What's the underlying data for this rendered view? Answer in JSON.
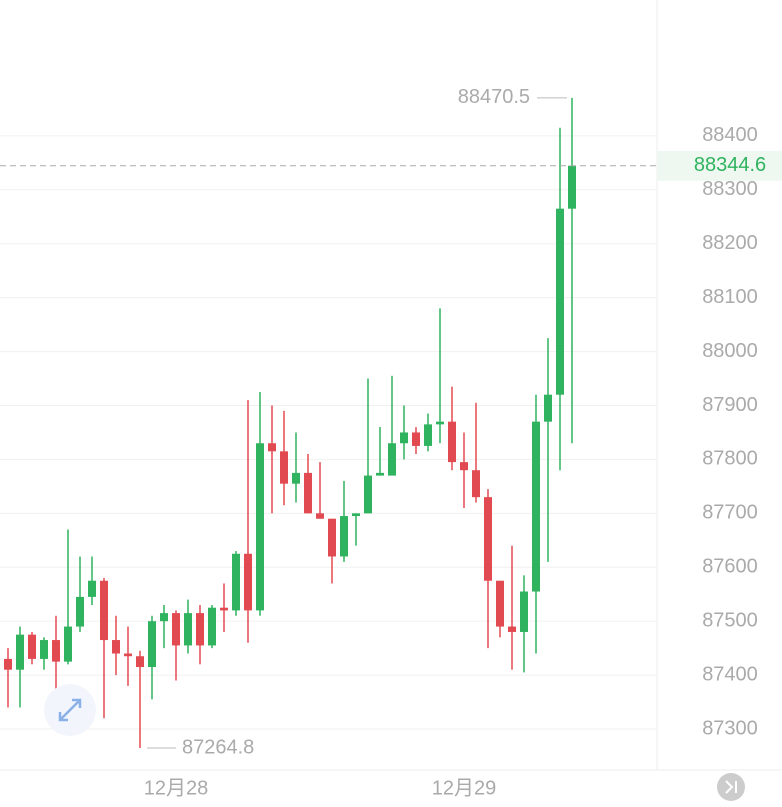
{
  "chart_data": {
    "type": "candlestick",
    "categories": [
      null,
      null,
      null,
      null,
      null,
      null,
      null,
      null,
      null,
      null,
      null,
      null,
      null,
      null,
      "12月28",
      null,
      null,
      null,
      null,
      null,
      null,
      null,
      null,
      null,
      null,
      null,
      null,
      null,
      null,
      null,
      null,
      null,
      null,
      null,
      null,
      null,
      null,
      null,
      "12月29",
      null,
      null,
      null,
      null,
      null,
      null,
      null,
      null,
      null
    ],
    "open": [
      87430,
      87410,
      87475,
      87430,
      87465,
      87425,
      87490,
      87545,
      87575,
      87465,
      87440,
      87435,
      87415,
      87500,
      87515,
      87455,
      87515,
      87455,
      87525,
      87520,
      87625,
      87520,
      87830,
      87815,
      87755,
      87775,
      87700,
      87690,
      87620,
      87695,
      87700,
      87770,
      87770,
      87830,
      87850,
      87825,
      87865,
      87870,
      87795,
      87780,
      87730,
      87575,
      87490,
      87480,
      87555,
      87870,
      87920,
      88265
    ],
    "close": [
      87410,
      87475,
      87430,
      87465,
      87425,
      87490,
      87545,
      87575,
      87465,
      87440,
      87435,
      87415,
      87500,
      87515,
      87455,
      87515,
      87455,
      87525,
      87520,
      87625,
      87520,
      87830,
      87815,
      87755,
      87775,
      87700,
      87690,
      87620,
      87695,
      87700,
      87770,
      87775,
      87830,
      87850,
      87825,
      87865,
      87870,
      87795,
      87780,
      87730,
      87575,
      87490,
      87480,
      87555,
      87870,
      87920,
      88265,
      88344.6
    ],
    "high": [
      87450,
      87490,
      87480,
      87470,
      87510,
      87670,
      87620,
      87620,
      87580,
      87510,
      87490,
      87445,
      87510,
      87530,
      87520,
      87540,
      87530,
      87530,
      87570,
      87630,
      87910,
      87925,
      87900,
      87890,
      87850,
      87810,
      87795,
      87690,
      87760,
      87700,
      87950,
      87860,
      87955,
      87900,
      87860,
      87885,
      88080,
      87935,
      87850,
      87905,
      87745,
      87575,
      87640,
      87585,
      87920,
      88025,
      88415,
      88470.5
    ],
    "low": [
      87340,
      87340,
      87420,
      87410,
      87370,
      87420,
      87480,
      87530,
      87320,
      87400,
      87380,
      87264.8,
      87355,
      87450,
      87390,
      87440,
      87420,
      87450,
      87480,
      87510,
      87460,
      87510,
      87700,
      87715,
      87720,
      87700,
      87690,
      87570,
      87610,
      87640,
      87700,
      87770,
      87770,
      87800,
      87810,
      87815,
      87830,
      87780,
      87710,
      87720,
      87450,
      87470,
      87410,
      87405,
      87440,
      87610,
      87780,
      87830
    ],
    "up_color": "#2fb35e",
    "down_color": "#e24a51",
    "ylim": [
      87224,
      88652
    ],
    "yticks": [
      87300,
      87400,
      87500,
      87600,
      87700,
      87800,
      87900,
      88000,
      88100,
      88200,
      88300,
      88400
    ],
    "grid": true,
    "last_price": 88344.6,
    "high_marker": 88470.5,
    "low_marker": 87264.8
  }
}
